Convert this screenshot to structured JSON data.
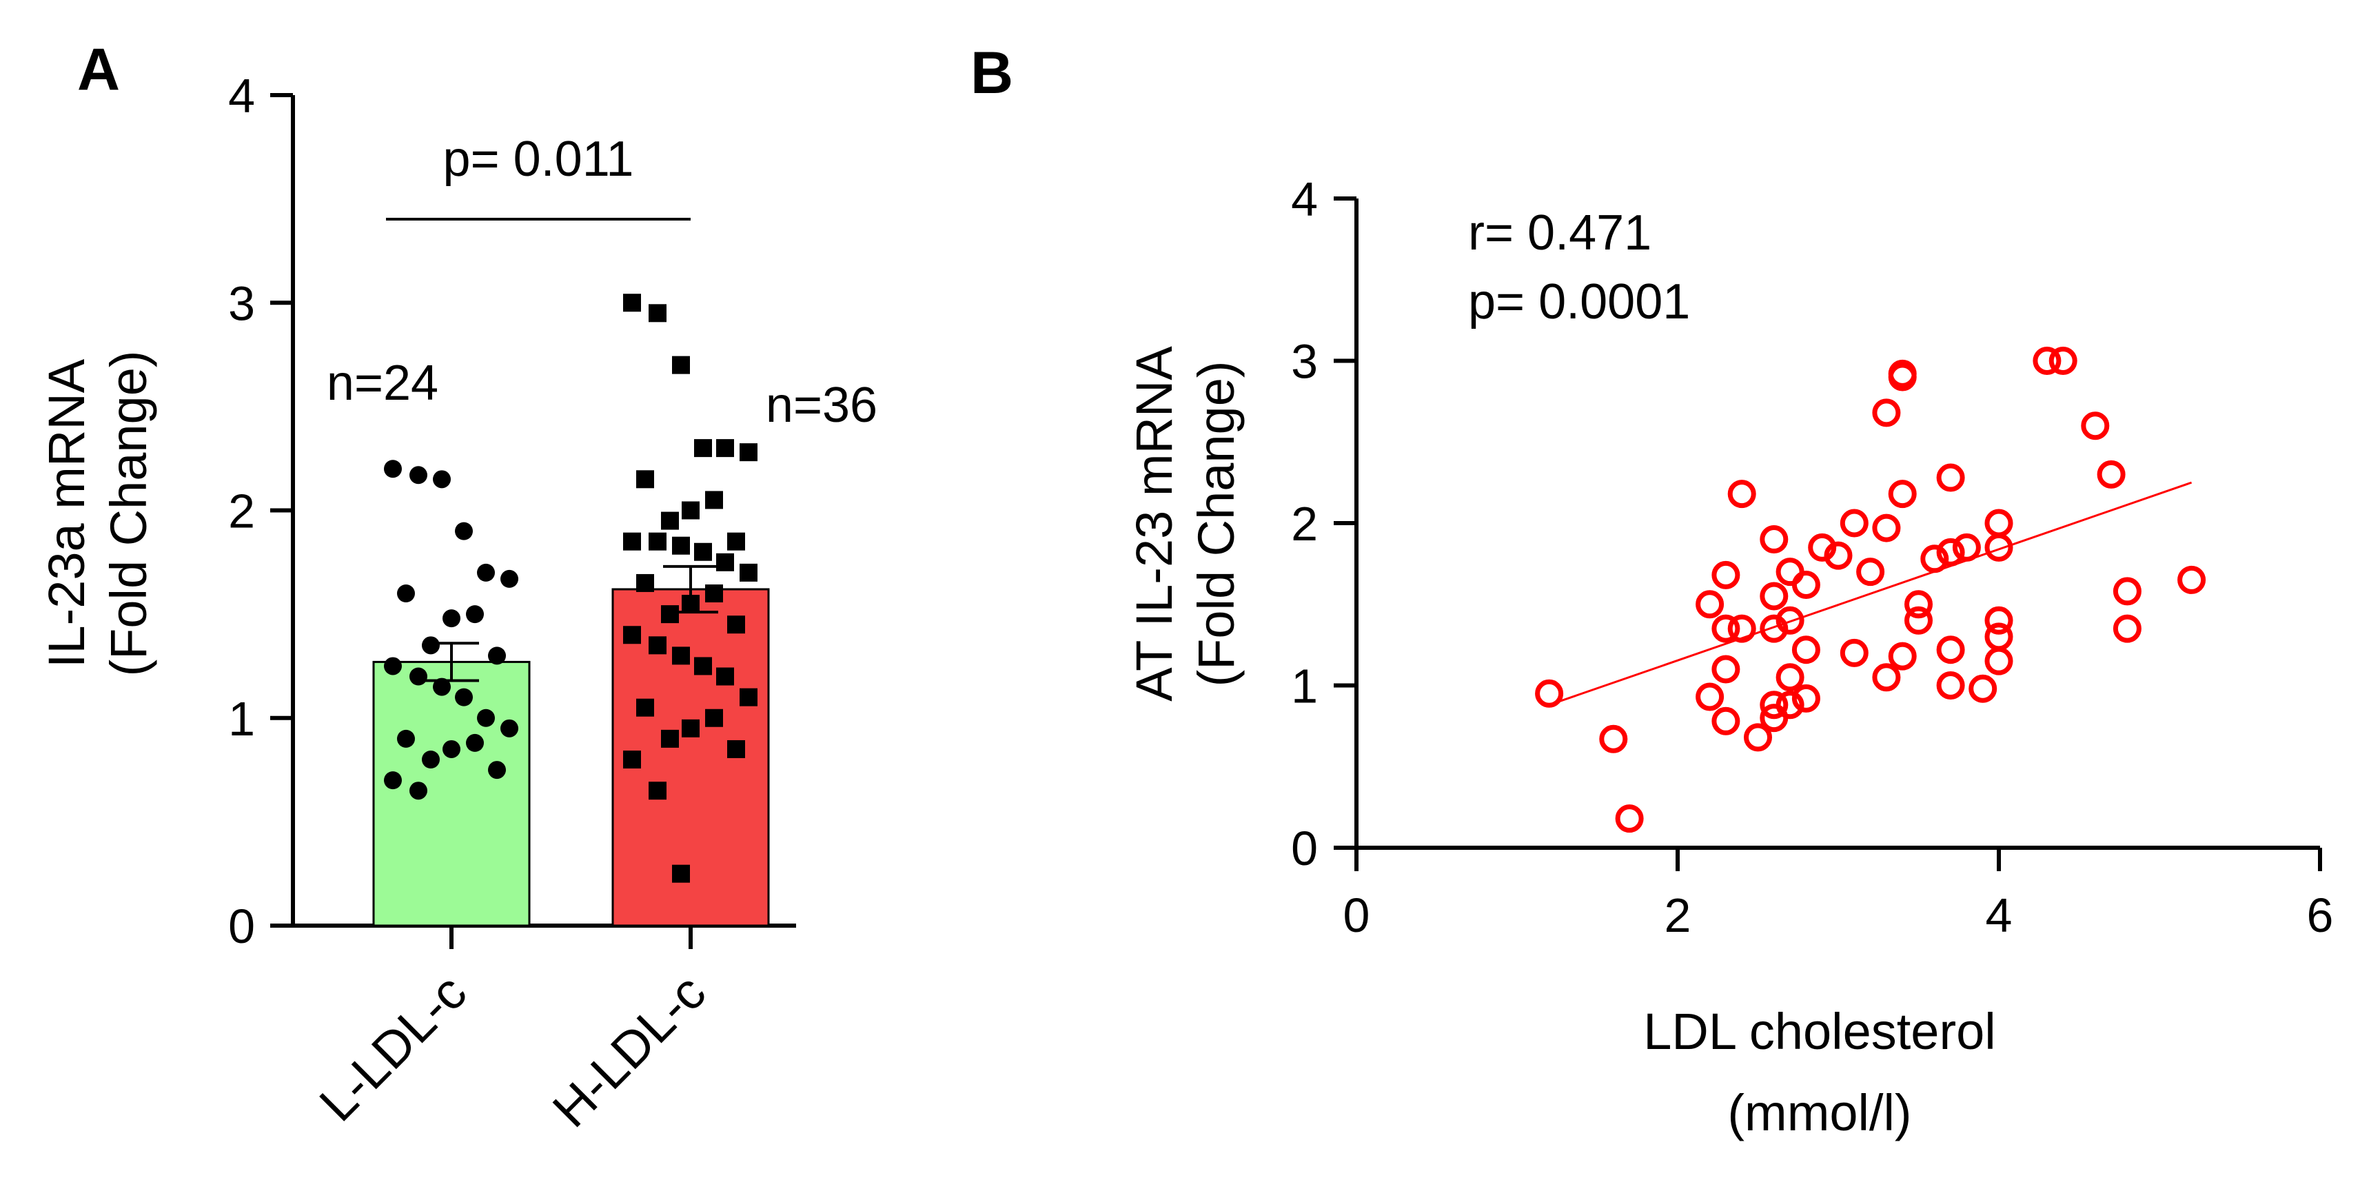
{
  "chart_data": [
    {
      "panel": "A",
      "type": "bar",
      "ylabel": [
        "IL-23a mRNA",
        "(Fold Change)"
      ],
      "ylim": [
        0,
        4
      ],
      "yticks": [
        0,
        1,
        2,
        3,
        4
      ],
      "categories": [
        "L-LDL-c",
        "H-LDL-c"
      ],
      "bars": [
        {
          "category": "L-LDL-c",
          "mean": 1.27,
          "sem": 0.09,
          "color": "#9cfa96",
          "n_label": "n=24",
          "points": [
            2.2,
            2.17,
            2.15,
            1.9,
            1.7,
            1.67,
            1.6,
            1.5,
            1.48,
            1.35,
            1.3,
            1.25,
            1.2,
            1.15,
            1.1,
            1.0,
            0.95,
            0.9,
            0.88,
            0.85,
            0.8,
            0.75,
            0.7,
            0.65
          ]
        },
        {
          "category": "H-LDL-c",
          "mean": 1.62,
          "sem": 0.11,
          "color": "#f44444",
          "n_label": "n=36",
          "points": [
            3.0,
            2.95,
            2.7,
            2.3,
            2.3,
            2.28,
            2.15,
            2.05,
            2.0,
            1.95,
            1.85,
            1.85,
            1.85,
            1.83,
            1.8,
            1.75,
            1.7,
            1.65,
            1.6,
            1.55,
            1.5,
            1.45,
            1.4,
            1.35,
            1.3,
            1.25,
            1.2,
            1.1,
            1.05,
            1.0,
            0.95,
            0.9,
            0.85,
            0.8,
            0.65,
            0.25
          ]
        }
      ],
      "significance": {
        "label": "p= 0.011",
        "between": [
          "L-LDL-c",
          "H-LDL-c"
        ]
      }
    },
    {
      "panel": "B",
      "type": "scatter",
      "xlabel": [
        "LDL cholesterol",
        "(mmol/l)"
      ],
      "ylabel": [
        "AT IL-23 mRNA",
        "(Fold Change)"
      ],
      "xlim": [
        0,
        6
      ],
      "ylim": [
        0,
        4
      ],
      "xticks": [
        0,
        2,
        4,
        6
      ],
      "yticks": [
        0,
        1,
        2,
        3,
        4
      ],
      "color": "#ff0000",
      "stats": [
        "r= 0.471",
        "p= 0.0001"
      ],
      "fit_line": {
        "x": [
          1.2,
          5.2
        ],
        "y": [
          0.88,
          2.25
        ]
      },
      "points": [
        [
          1.2,
          0.95
        ],
        [
          1.6,
          0.67
        ],
        [
          1.7,
          0.18
        ],
        [
          2.2,
          0.93
        ],
        [
          2.2,
          1.5
        ],
        [
          2.3,
          1.68
        ],
        [
          2.3,
          1.35
        ],
        [
          2.3,
          1.1
        ],
        [
          2.3,
          0.78
        ],
        [
          2.4,
          2.18
        ],
        [
          2.4,
          1.35
        ],
        [
          2.5,
          0.68
        ],
        [
          2.6,
          1.9
        ],
        [
          2.6,
          1.55
        ],
        [
          2.6,
          1.35
        ],
        [
          2.6,
          0.88
        ],
        [
          2.6,
          0.8
        ],
        [
          2.7,
          1.7
        ],
        [
          2.7,
          1.4
        ],
        [
          2.7,
          1.05
        ],
        [
          2.7,
          0.88
        ],
        [
          2.8,
          1.62
        ],
        [
          2.8,
          1.22
        ],
        [
          2.8,
          0.92
        ],
        [
          2.9,
          1.85
        ],
        [
          3.0,
          1.8
        ],
        [
          3.1,
          2.0
        ],
        [
          3.1,
          1.2
        ],
        [
          3.2,
          1.7
        ],
        [
          3.3,
          1.97
        ],
        [
          3.3,
          1.05
        ],
        [
          3.3,
          2.68
        ],
        [
          3.4,
          2.92
        ],
        [
          3.4,
          2.9
        ],
        [
          3.4,
          2.18
        ],
        [
          3.4,
          1.18
        ],
        [
          3.5,
          1.5
        ],
        [
          3.5,
          1.4
        ],
        [
          3.6,
          1.78
        ],
        [
          3.7,
          2.28
        ],
        [
          3.7,
          1.82
        ],
        [
          3.7,
          1.22
        ],
        [
          3.7,
          1.0
        ],
        [
          3.8,
          1.85
        ],
        [
          3.9,
          0.98
        ],
        [
          4.0,
          2.0
        ],
        [
          4.0,
          1.85
        ],
        [
          4.0,
          1.4
        ],
        [
          4.0,
          1.3
        ],
        [
          4.0,
          1.15
        ],
        [
          4.3,
          3.0
        ],
        [
          4.4,
          3.0
        ],
        [
          4.6,
          2.6
        ],
        [
          4.7,
          2.3
        ],
        [
          4.8,
          1.58
        ],
        [
          4.8,
          1.35
        ],
        [
          5.2,
          1.65
        ]
      ]
    }
  ]
}
